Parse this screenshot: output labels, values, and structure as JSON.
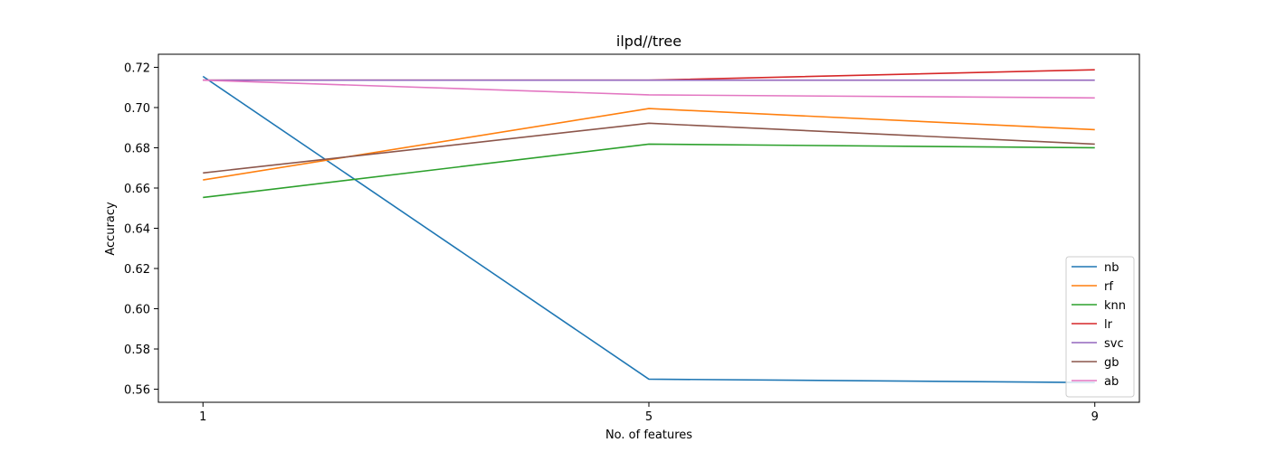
{
  "chart_data": {
    "type": "line",
    "title": "ilpd//tree",
    "xlabel": "No. of features",
    "ylabel": "Accuracy",
    "x": [
      1,
      5,
      9
    ],
    "x_ticks": [
      "1",
      "5",
      "9"
    ],
    "y_ticks": [
      "0.56",
      "0.58",
      "0.60",
      "0.62",
      "0.64",
      "0.66",
      "0.68",
      "0.70",
      "0.72"
    ],
    "xlim": [
      0.6,
      9.4
    ],
    "ylim": [
      0.5535,
      0.7265
    ],
    "legend_position": "lower-right",
    "grid": false,
    "series": [
      {
        "name": "nb",
        "color": "#1f77b4",
        "values": [
          0.7155,
          0.565,
          0.5633
        ]
      },
      {
        "name": "rf",
        "color": "#ff7f0e",
        "values": [
          0.664,
          0.6995,
          0.689
        ]
      },
      {
        "name": "knn",
        "color": "#2ca02c",
        "values": [
          0.6553,
          0.6818,
          0.68
        ]
      },
      {
        "name": "lr",
        "color": "#d62728",
        "values": [
          0.7136,
          0.7136,
          0.7188
        ]
      },
      {
        "name": "svc",
        "color": "#9467bd",
        "values": [
          0.7136,
          0.7136,
          0.7136
        ]
      },
      {
        "name": "gb",
        "color": "#8c564b",
        "values": [
          0.6675,
          0.6922,
          0.6818
        ]
      },
      {
        "name": "ab",
        "color": "#e377c2",
        "values": [
          0.7136,
          0.7063,
          0.7048
        ]
      }
    ]
  }
}
